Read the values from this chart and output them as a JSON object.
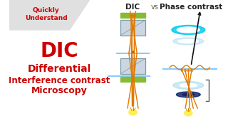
{
  "bg_color": "#ffffff",
  "title_text": "Quickly\nUnderstand",
  "main_text_line1": "DIC",
  "main_text_line2": "Differential",
  "main_text_line3": "Interference contrast",
  "main_text_line4": "Microscopy",
  "dic_label": "DIC",
  "vs_label": "vs",
  "phase_label": "Phase contrast",
  "red_color": "#cc0000",
  "orange_color": "#e07800",
  "black_color": "#111111",
  "cyan_ring_color": "#00ccee",
  "cyan_light": "#aaddee",
  "dark_navy": "#001a66",
  "green_bar": "#88bb33",
  "blue_lens": "#aabbcc",
  "sample_line": "#88ccff",
  "banner_bg": "#e0e0e0",
  "bulb_yellow": "#ffee55",
  "bulb_orange": "#cc8800",
  "bracket_color": "#555555"
}
